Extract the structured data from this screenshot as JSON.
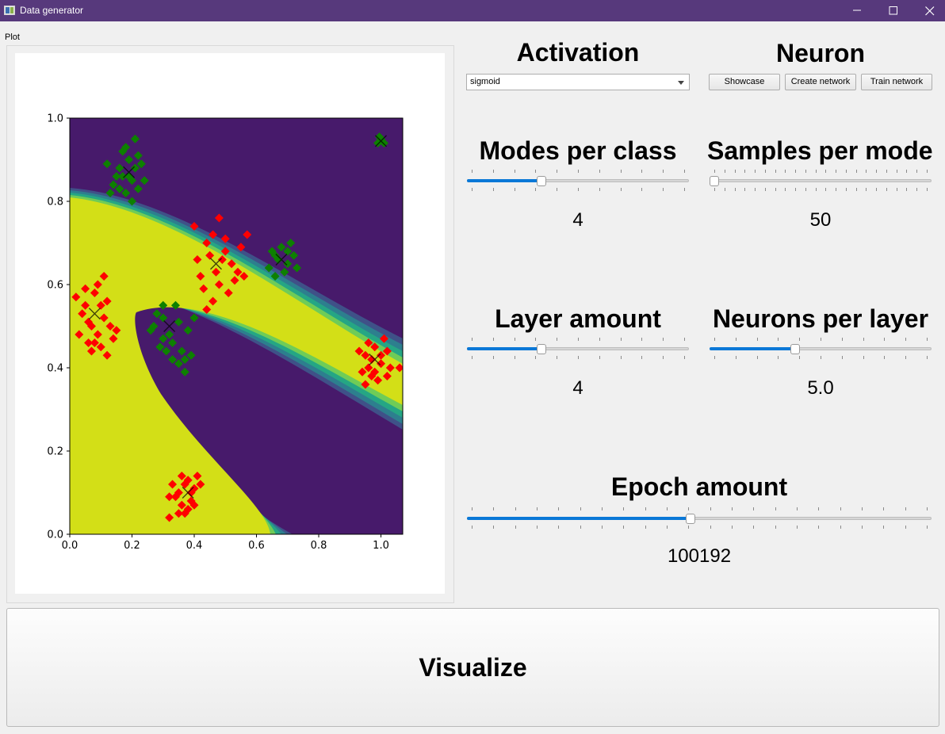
{
  "window": {
    "title": "Data generator"
  },
  "plot": {
    "caption": "Plot",
    "chart_data": {
      "type": "scatter",
      "title": "",
      "xlabel": "",
      "ylabel": "",
      "xlim": [
        0.0,
        1.07
      ],
      "ylim": [
        0.0,
        1.0
      ],
      "x_ticks": [
        "0.0",
        "0.2",
        "0.4",
        "0.6",
        "0.8",
        "1.0"
      ],
      "y_ticks": [
        "0.0",
        "0.2",
        "0.4",
        "0.6",
        "0.8",
        "1.0"
      ],
      "background_colors": {
        "class0": "#471a6b",
        "class1": "#d3df17",
        "transition": [
          "#3f5188",
          "#2d7f8e",
          "#25a684",
          "#6fcc57"
        ]
      },
      "series": [
        {
          "color": "#0d8000",
          "marker": "diamond",
          "centers": [
            [
              0.19,
              0.87
            ],
            [
              0.68,
              0.66
            ],
            [
              0.32,
              0.5
            ],
            [
              1.0,
              0.945
            ]
          ],
          "points": [
            [
              0.14,
              0.84
            ],
            [
              0.16,
              0.88
            ],
            [
              0.17,
              0.86
            ],
            [
              0.19,
              0.9
            ],
            [
              0.2,
              0.85
            ],
            [
              0.21,
              0.88
            ],
            [
              0.22,
              0.83
            ],
            [
              0.18,
              0.82
            ],
            [
              0.15,
              0.86
            ],
            [
              0.12,
              0.89
            ],
            [
              0.17,
              0.92
            ],
            [
              0.21,
              0.95
            ],
            [
              0.2,
              0.8
            ],
            [
              0.24,
              0.85
            ],
            [
              0.13,
              0.82
            ],
            [
              0.18,
              0.93
            ],
            [
              0.23,
              0.89
            ],
            [
              0.16,
              0.83
            ],
            [
              0.19,
              0.86
            ],
            [
              0.22,
              0.91
            ],
            [
              0.64,
              0.64
            ],
            [
              0.66,
              0.67
            ],
            [
              0.68,
              0.69
            ],
            [
              0.7,
              0.65
            ],
            [
              0.72,
              0.67
            ],
            [
              0.69,
              0.63
            ],
            [
              0.66,
              0.62
            ],
            [
              0.71,
              0.7
            ],
            [
              0.67,
              0.66
            ],
            [
              0.73,
              0.64
            ],
            [
              0.65,
              0.68
            ],
            [
              0.7,
              0.68
            ],
            [
              0.27,
              0.5
            ],
            [
              0.3,
              0.52
            ],
            [
              0.32,
              0.48
            ],
            [
              0.35,
              0.51
            ],
            [
              0.33,
              0.46
            ],
            [
              0.3,
              0.47
            ],
            [
              0.36,
              0.44
            ],
            [
              0.34,
              0.55
            ],
            [
              0.28,
              0.53
            ],
            [
              0.38,
              0.49
            ],
            [
              0.31,
              0.44
            ],
            [
              0.37,
              0.42
            ],
            [
              0.39,
              0.43
            ],
            [
              0.33,
              0.42
            ],
            [
              0.35,
              0.41
            ],
            [
              0.3,
              0.55
            ],
            [
              0.4,
              0.52
            ],
            [
              0.37,
              0.39
            ],
            [
              0.29,
              0.45
            ],
            [
              0.26,
              0.49
            ],
            [
              0.99,
              0.94
            ],
            [
              1.0,
              0.95
            ],
            [
              1.01,
              0.94
            ],
            [
              0.995,
              0.955
            ]
          ]
        },
        {
          "color": "#ff0000",
          "marker": "diamond",
          "centers": [
            [
              0.08,
              0.53
            ],
            [
              0.47,
              0.65
            ],
            [
              0.98,
              0.42
            ],
            [
              0.38,
              0.1
            ]
          ],
          "points": [
            [
              0.05,
              0.55
            ],
            [
              0.07,
              0.5
            ],
            [
              0.09,
              0.48
            ],
            [
              0.11,
              0.52
            ],
            [
              0.06,
              0.46
            ],
            [
              0.08,
              0.58
            ],
            [
              0.12,
              0.56
            ],
            [
              0.03,
              0.48
            ],
            [
              0.1,
              0.45
            ],
            [
              0.13,
              0.5
            ],
            [
              0.04,
              0.53
            ],
            [
              0.09,
              0.6
            ],
            [
              0.11,
              0.62
            ],
            [
              0.02,
              0.57
            ],
            [
              0.07,
              0.44
            ],
            [
              0.14,
              0.47
            ],
            [
              0.06,
              0.51
            ],
            [
              0.1,
              0.55
            ],
            [
              0.12,
              0.43
            ],
            [
              0.15,
              0.49
            ],
            [
              0.05,
              0.59
            ],
            [
              0.08,
              0.46
            ],
            [
              0.42,
              0.62
            ],
            [
              0.45,
              0.67
            ],
            [
              0.47,
              0.63
            ],
            [
              0.5,
              0.68
            ],
            [
              0.48,
              0.6
            ],
            [
              0.44,
              0.7
            ],
            [
              0.52,
              0.65
            ],
            [
              0.46,
              0.72
            ],
            [
              0.53,
              0.61
            ],
            [
              0.41,
              0.66
            ],
            [
              0.5,
              0.71
            ],
            [
              0.43,
              0.59
            ],
            [
              0.49,
              0.66
            ],
            [
              0.55,
              0.69
            ],
            [
              0.46,
              0.56
            ],
            [
              0.54,
              0.63
            ],
            [
              0.4,
              0.74
            ],
            [
              0.51,
              0.58
            ],
            [
              0.56,
              0.62
            ],
            [
              0.44,
              0.54
            ],
            [
              0.57,
              0.72
            ],
            [
              0.48,
              0.76
            ],
            [
              0.93,
              0.44
            ],
            [
              0.96,
              0.4
            ],
            [
              0.98,
              0.45
            ],
            [
              1.0,
              0.41
            ],
            [
              0.97,
              0.38
            ],
            [
              0.95,
              0.43
            ],
            [
              1.02,
              0.44
            ],
            [
              0.99,
              0.37
            ],
            [
              0.94,
              0.39
            ],
            [
              1.01,
              0.47
            ],
            [
              0.97,
              0.42
            ],
            [
              1.03,
              0.4
            ],
            [
              0.96,
              0.46
            ],
            [
              1.0,
              0.43
            ],
            [
              0.98,
              0.39
            ],
            [
              1.06,
              0.4
            ],
            [
              0.95,
              0.36
            ],
            [
              1.02,
              0.38
            ],
            [
              0.35,
              0.1
            ],
            [
              0.37,
              0.12
            ],
            [
              0.39,
              0.08
            ],
            [
              0.38,
              0.13
            ],
            [
              0.36,
              0.07
            ],
            [
              0.4,
              0.11
            ],
            [
              0.34,
              0.09
            ],
            [
              0.41,
              0.14
            ],
            [
              0.37,
              0.05
            ],
            [
              0.39,
              0.1
            ],
            [
              0.33,
              0.12
            ],
            [
              0.38,
              0.06
            ],
            [
              0.42,
              0.12
            ],
            [
              0.32,
              0.09
            ],
            [
              0.36,
              0.14
            ],
            [
              0.4,
              0.07
            ],
            [
              0.35,
              0.05
            ],
            [
              0.32,
              0.04
            ]
          ]
        }
      ]
    }
  },
  "activation": {
    "heading": "Activation",
    "selected": "sigmoid"
  },
  "neuron": {
    "heading": "Neuron",
    "showcase": "Showcase",
    "create": "Create network",
    "train": "Train network"
  },
  "modes_per_class": {
    "heading": "Modes per class",
    "value": "4",
    "fraction": 0.33
  },
  "samples_per_mode": {
    "heading": "Samples per mode",
    "value": "50",
    "fraction": 0.0
  },
  "layer_amount": {
    "heading": "Layer amount",
    "value": "4",
    "fraction": 0.33
  },
  "neurons_per_layer": {
    "heading": "Neurons per layer",
    "value": "5.0",
    "fraction": 0.38
  },
  "epoch_amount": {
    "heading": "Epoch amount",
    "value": "100192",
    "fraction": 0.48
  },
  "visualize": {
    "label": "Visualize"
  }
}
